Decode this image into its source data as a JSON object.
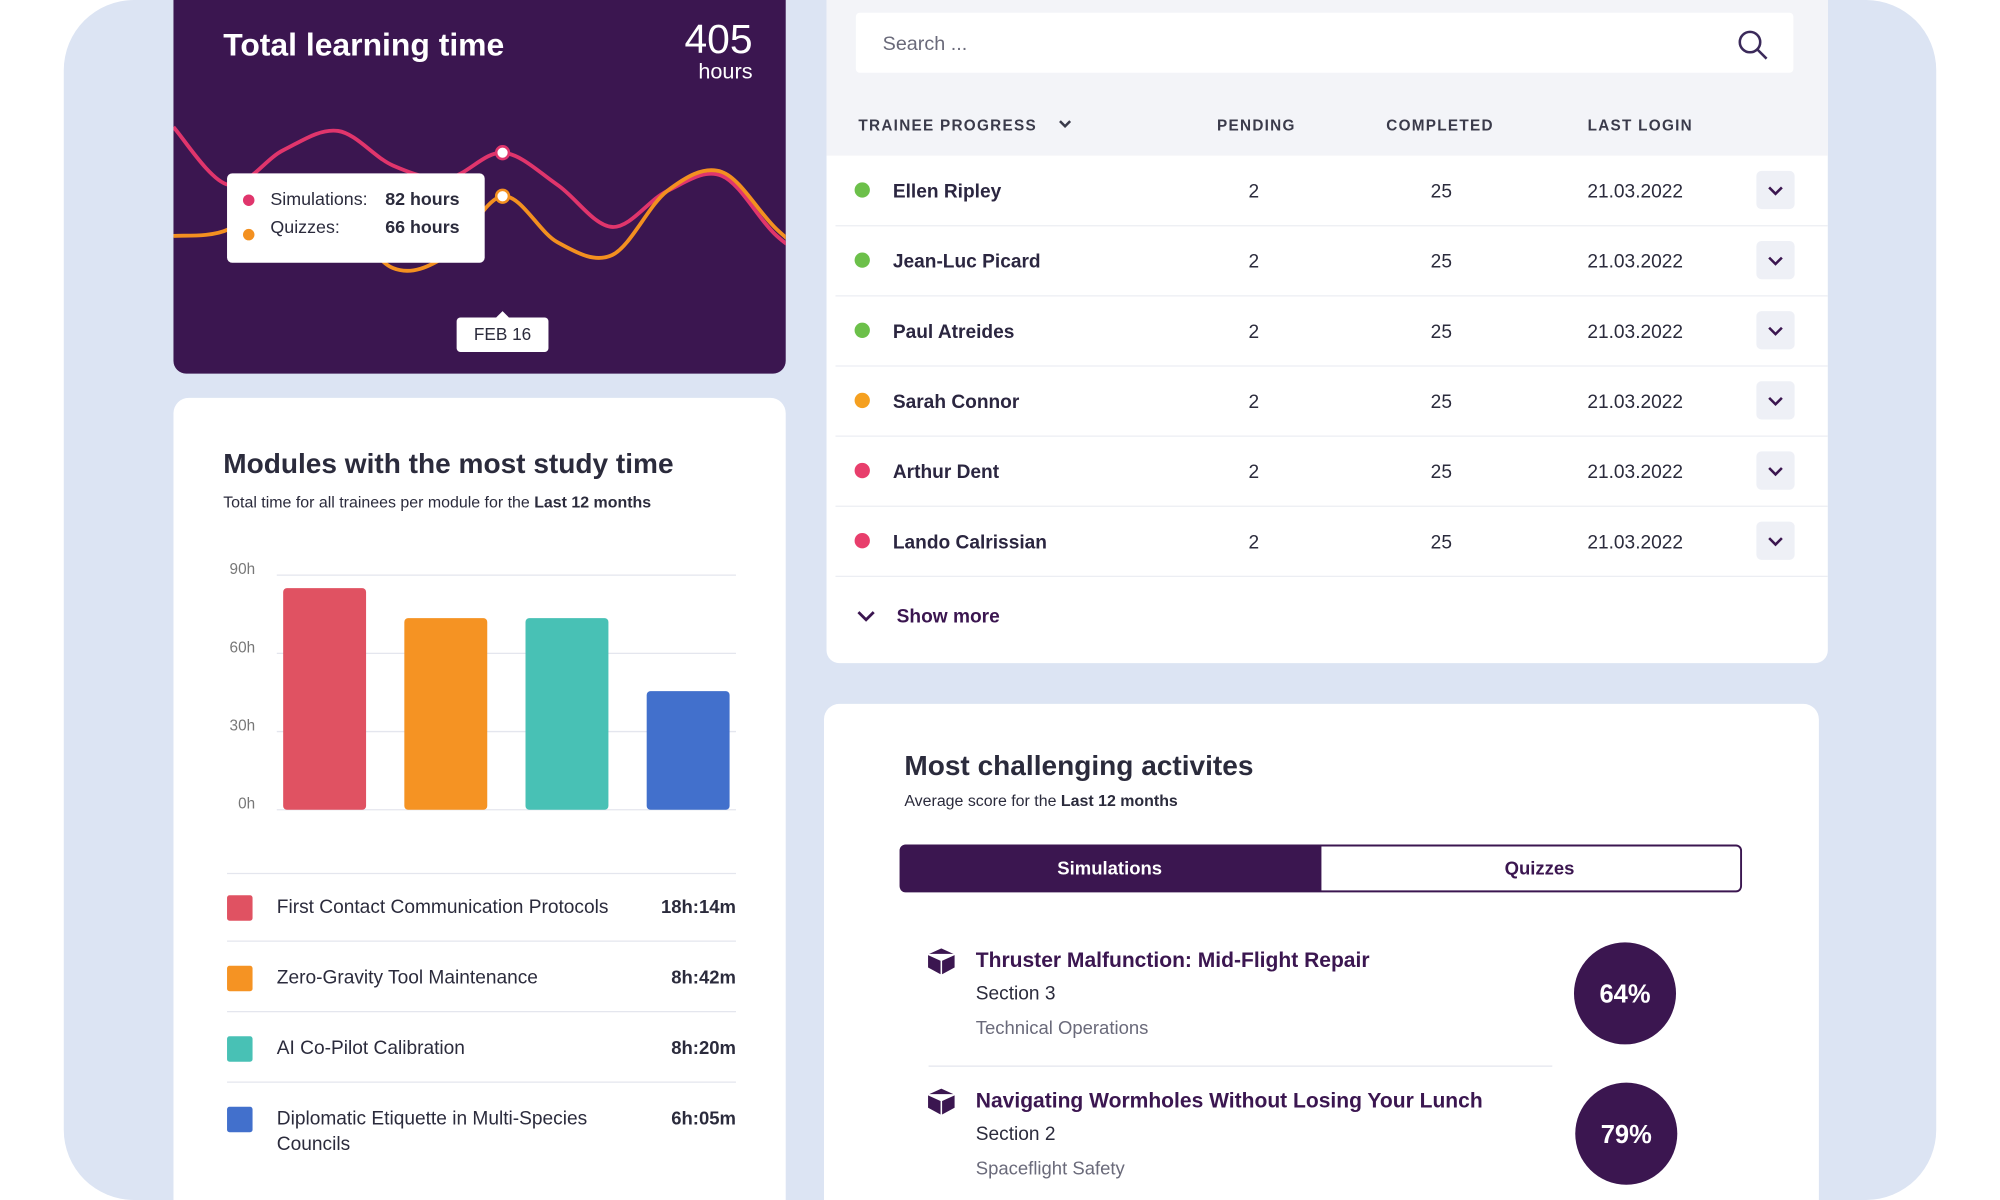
{
  "chart_data": [
    {
      "type": "line",
      "title": "Total learning time",
      "total": 405,
      "total_unit": "hours",
      "categories": [
        null,
        null,
        null,
        null,
        null,
        null,
        "FEB 16",
        null,
        null,
        null,
        null,
        null,
        null
      ],
      "series": [
        {
          "name": "Simulations:",
          "color": "#e0356c",
          "values": [
            91.4,
            70.2,
            82.9,
            90,
            77.3,
            72.6,
            82,
            70.2,
            54.7,
            67.9,
            73.5,
            51.4,
            37.3
          ],
          "value_labels": [
            null,
            null,
            null,
            null,
            null,
            null,
            "82 hours",
            null,
            null,
            null,
            null,
            null,
            null
          ]
        },
        {
          "name": "Quizzes:",
          "color": "#f39020",
          "values": [
            51.4,
            53.8,
            70.2,
            60.8,
            39.6,
            44.4,
            66,
            49.1,
            44.4,
            67.9,
            74.9,
            53.8,
            37.3
          ],
          "value_labels": [
            null,
            null,
            null,
            null,
            null,
            null,
            "66 hours",
            null,
            null,
            null,
            null,
            null,
            null
          ]
        }
      ],
      "ylim": [
        20,
        110
      ]
    },
    {
      "type": "bar",
      "title": "Modules with the most study time",
      "subtitle": "Total time for all trainees per module for the",
      "subtitle_emphasis": "Last 12 months",
      "categories": [
        "First Contact Communication Protocols",
        "Zero-Gravity Tool Maintenance",
        "AI Co-Pilot Calibration",
        "Diplomatic Etiquette in Multi-Species Councils"
      ],
      "values": [
        85,
        73.5,
        73.5,
        45.5
      ],
      "colors": [
        "#e05262",
        "#f59323",
        "#48c1b5",
        "#4270cc"
      ],
      "durations": [
        "18h:14m",
        "8h:42m",
        "8h:20m",
        "6h:05m"
      ],
      "ylim": [
        0,
        90
      ],
      "yticks": [
        {
          "value": 0,
          "label": "0h"
        },
        {
          "value": 30,
          "label": "30h"
        },
        {
          "value": 60,
          "label": "60h"
        },
        {
          "value": 90,
          "label": "90h"
        }
      ],
      "grid": true
    }
  ],
  "trainees": {
    "search_placeholder": "Search ...",
    "headers": [
      "TRAINEE PROGRESS",
      "PENDING",
      "COMPLETED",
      "LAST LOGIN"
    ],
    "rows": [
      {
        "name": "Ellen Ripley",
        "status_color": "#6cc04a",
        "pending": 2,
        "completed": 25,
        "last_login": "21.03.2022"
      },
      {
        "name": "Jean-Luc Picard",
        "status_color": "#6cc04a",
        "pending": 2,
        "completed": 25,
        "last_login": "21.03.2022"
      },
      {
        "name": "Paul Atreides",
        "status_color": "#6cc04a",
        "pending": 2,
        "completed": 25,
        "last_login": "21.03.2022"
      },
      {
        "name": "Sarah Connor",
        "status_color": "#f5a020",
        "pending": 2,
        "completed": 25,
        "last_login": "21.03.2022"
      },
      {
        "name": "Arthur Dent",
        "status_color": "#e83e6c",
        "pending": 2,
        "completed": 25,
        "last_login": "21.03.2022"
      },
      {
        "name": "Lando Calrissian",
        "status_color": "#e83e6c",
        "pending": 2,
        "completed": 25,
        "last_login": "21.03.2022"
      }
    ],
    "show_more": "Show more"
  },
  "activities": {
    "title": "Most challenging activites",
    "subtitle": "Average score for the",
    "subtitle_emphasis": "Last 12 months",
    "tabs": [
      "Simulations",
      "Quizzes"
    ],
    "items": [
      {
        "title": "Thruster Malfunction: Mid-Flight Repair",
        "section": "Section 3",
        "category": "Technical Operations",
        "score": "64%"
      },
      {
        "title": "Navigating Wormholes Without Losing Your Lunch",
        "section": "Section 2",
        "category": "Spaceflight Safety",
        "score": "79%"
      }
    ]
  }
}
